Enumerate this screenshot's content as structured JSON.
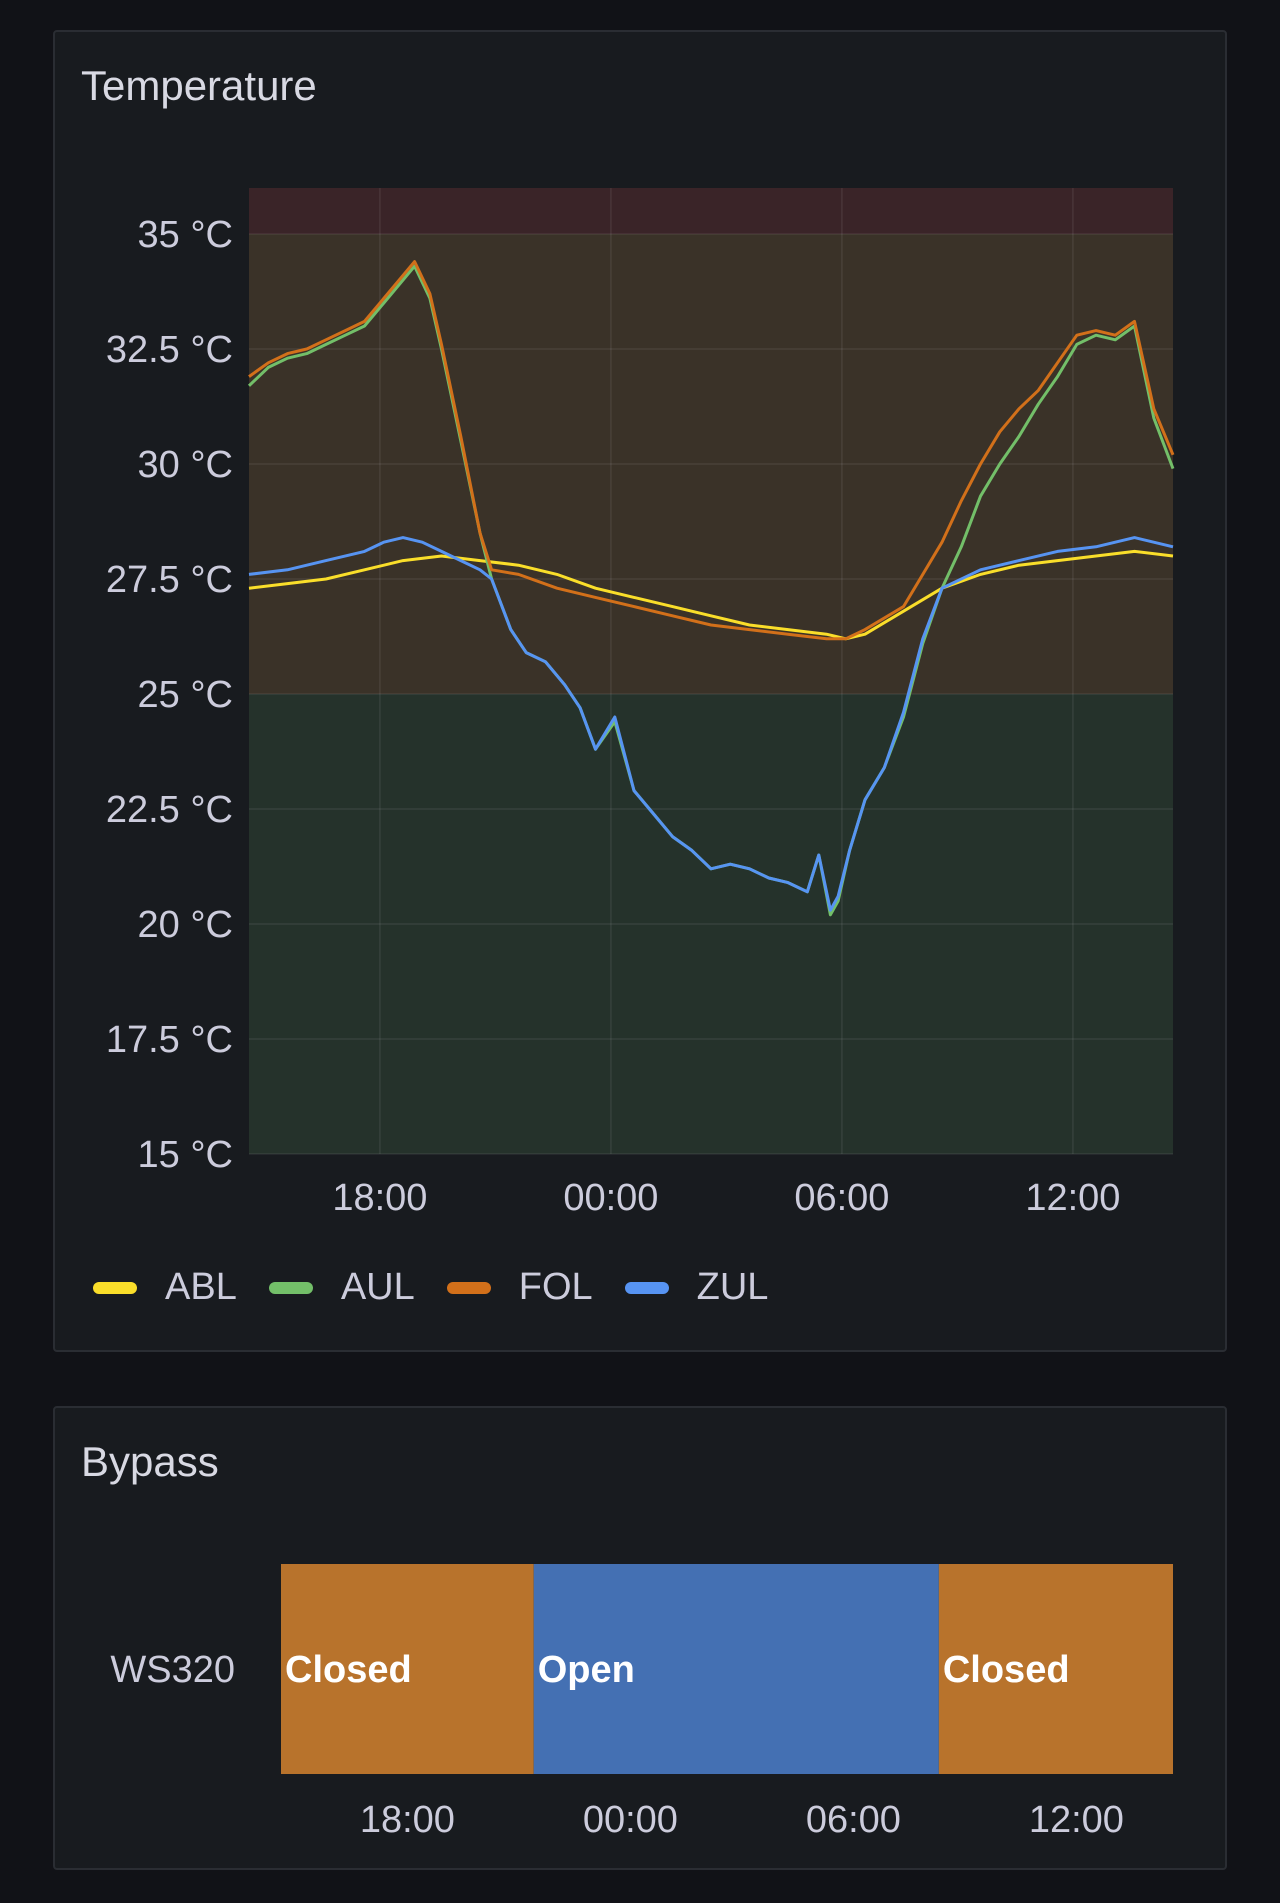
{
  "temperature_panel": {
    "title": "Temperature"
  },
  "bypass_panel": {
    "title": "Bypass"
  },
  "colors": {
    "background": "#111217",
    "panel": "#181b1f",
    "threshold_green": "#25322b",
    "threshold_amber": "#3a3228",
    "threshold_red": "#3a2428",
    "ABL": "#fade2a",
    "AUL": "#73bf69",
    "FOL": "#d2701a",
    "ZUL": "#5794f2",
    "closed": "#b8732c",
    "open": "#4470b3"
  },
  "chart_data": [
    {
      "type": "line",
      "title": "Temperature",
      "x_unit": "hours since 15:00",
      "xlim": [
        0,
        24
      ],
      "x_ticks": [
        {
          "x": 3.4,
          "label": "18:00"
        },
        {
          "x": 9.4,
          "label": "00:00"
        },
        {
          "x": 15.4,
          "label": "06:00"
        },
        {
          "x": 21.4,
          "label": "12:00"
        }
      ],
      "ylim": [
        15,
        36
      ],
      "y_ticks": [
        {
          "y": 15,
          "label": "15 °C"
        },
        {
          "y": 17.5,
          "label": "17.5 °C"
        },
        {
          "y": 20,
          "label": "20 °C"
        },
        {
          "y": 22.5,
          "label": "22.5 °C"
        },
        {
          "y": 25,
          "label": "25 °C"
        },
        {
          "y": 27.5,
          "label": "27.5 °C"
        },
        {
          "y": 30,
          "label": "30 °C"
        },
        {
          "y": 32.5,
          "label": "32.5 °C"
        },
        {
          "y": 35,
          "label": "35 °C"
        }
      ],
      "thresholds": [
        {
          "from": 15,
          "to": 25,
          "color": "threshold_green"
        },
        {
          "from": 25,
          "to": 35,
          "color": "threshold_amber"
        },
        {
          "from": 35,
          "to": 36,
          "color": "threshold_red"
        }
      ],
      "grid": true,
      "legend_position": "bottom-left",
      "series": [
        {
          "name": "ABL",
          "color": "ABL",
          "x": [
            0,
            1,
            2,
            3,
            4,
            5,
            6,
            7,
            8,
            9,
            10,
            11,
            12,
            13,
            14,
            15,
            15.5,
            16,
            17,
            18,
            19,
            20,
            21,
            22,
            23,
            24
          ],
          "y": [
            27.3,
            27.4,
            27.5,
            27.7,
            27.9,
            28.0,
            27.9,
            27.8,
            27.6,
            27.3,
            27.1,
            26.9,
            26.7,
            26.5,
            26.4,
            26.3,
            26.2,
            26.3,
            26.8,
            27.3,
            27.6,
            27.8,
            27.9,
            28.0,
            28.1,
            28.0
          ]
        },
        {
          "name": "AUL",
          "color": "AUL",
          "x": [
            0,
            0.5,
            1,
            1.5,
            2,
            2.5,
            3,
            3.5,
            4,
            4.3,
            4.7,
            5,
            5.5,
            6,
            6.3,
            6.8,
            7.2,
            7.7,
            8.2,
            8.6,
            9,
            9.5,
            10,
            10.5,
            11,
            11.5,
            12,
            12.5,
            13,
            13.5,
            14,
            14.5,
            14.8,
            15.1,
            15.3,
            15.6,
            16,
            16.5,
            17,
            17.5,
            18,
            18.5,
            19,
            19.5,
            20,
            20.5,
            21,
            21.5,
            22,
            22.5,
            23,
            23.5,
            24
          ],
          "y": [
            31.7,
            32.1,
            32.3,
            32.4,
            32.6,
            32.8,
            33.0,
            33.5,
            34.0,
            34.3,
            33.6,
            32.5,
            30.5,
            28.5,
            27.5,
            26.4,
            25.9,
            25.7,
            25.2,
            24.7,
            23.8,
            24.4,
            22.9,
            22.4,
            21.9,
            21.6,
            21.2,
            21.3,
            21.2,
            21.0,
            20.9,
            20.7,
            21.5,
            20.2,
            20.5,
            21.6,
            22.7,
            23.4,
            24.5,
            26.1,
            27.3,
            28.2,
            29.3,
            30.0,
            30.6,
            31.3,
            31.9,
            32.6,
            32.8,
            32.7,
            33.0,
            31.0,
            29.9
          ]
        },
        {
          "name": "FOL",
          "color": "FOL",
          "x": [
            0,
            0.5,
            1,
            1.5,
            2,
            2.5,
            3,
            3.5,
            4,
            4.3,
            4.7,
            5,
            5.5,
            6,
            6.3,
            7,
            8,
            9,
            10,
            11,
            12,
            13,
            14,
            15,
            15.5,
            16,
            17,
            17.5,
            18,
            18.5,
            19,
            19.5,
            20,
            20.5,
            21,
            21.5,
            22,
            22.5,
            23,
            23.5,
            24
          ],
          "y": [
            31.9,
            32.2,
            32.4,
            32.5,
            32.7,
            32.9,
            33.1,
            33.6,
            34.1,
            34.4,
            33.7,
            32.6,
            30.6,
            28.5,
            27.7,
            27.6,
            27.3,
            27.1,
            26.9,
            26.7,
            26.5,
            26.4,
            26.3,
            26.2,
            26.2,
            26.4,
            26.9,
            27.6,
            28.3,
            29.2,
            30.0,
            30.7,
            31.2,
            31.6,
            32.2,
            32.8,
            32.9,
            32.8,
            33.1,
            31.2,
            30.2
          ]
        },
        {
          "name": "ZUL",
          "color": "ZUL",
          "x": [
            0,
            1,
            2,
            3,
            3.5,
            4,
            4.5,
            5,
            5.5,
            6,
            6.3,
            6.8,
            7.2,
            7.7,
            8.2,
            8.6,
            9,
            9.5,
            10,
            10.5,
            11,
            11.5,
            12,
            12.5,
            13,
            13.5,
            14,
            14.5,
            14.8,
            15.1,
            15.3,
            15.6,
            16,
            16.5,
            17,
            17.5,
            18,
            19,
            20,
            21,
            22,
            23,
            24
          ],
          "y": [
            27.6,
            27.7,
            27.9,
            28.1,
            28.3,
            28.4,
            28.3,
            28.1,
            27.9,
            27.7,
            27.5,
            26.4,
            25.9,
            25.7,
            25.2,
            24.7,
            23.8,
            24.5,
            22.9,
            22.4,
            21.9,
            21.6,
            21.2,
            21.3,
            21.2,
            21.0,
            20.9,
            20.7,
            21.5,
            20.3,
            20.6,
            21.6,
            22.7,
            23.4,
            24.6,
            26.2,
            27.3,
            27.7,
            27.9,
            28.1,
            28.2,
            28.4,
            28.2
          ]
        }
      ]
    },
    {
      "type": "timeline",
      "title": "Bypass",
      "x_unit": "hours since 15:00",
      "xlim": [
        0,
        24
      ],
      "x_ticks": [
        {
          "x": 3.4,
          "label": "18:00"
        },
        {
          "x": 9.4,
          "label": "00:00"
        },
        {
          "x": 15.4,
          "label": "06:00"
        },
        {
          "x": 21.4,
          "label": "12:00"
        }
      ],
      "rows": [
        {
          "name": "WS320",
          "states": [
            {
              "from": 0,
              "to": 6.8,
              "value": "Closed",
              "color": "closed"
            },
            {
              "from": 6.8,
              "to": 17.7,
              "value": "Open",
              "color": "open"
            },
            {
              "from": 17.7,
              "to": 24,
              "value": "Closed",
              "color": "closed"
            }
          ]
        }
      ]
    }
  ]
}
